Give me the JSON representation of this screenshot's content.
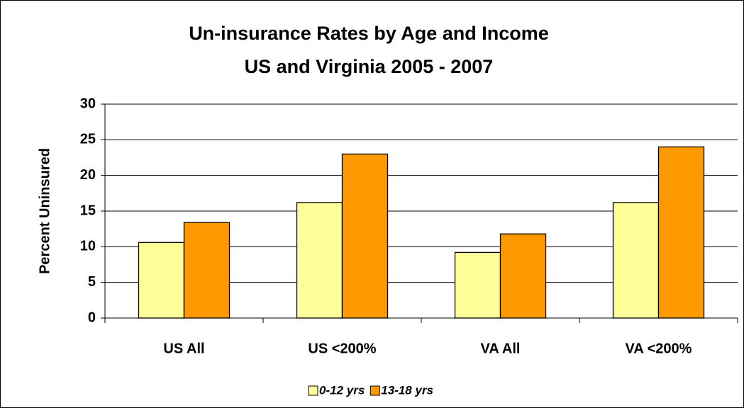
{
  "chart_data": {
    "type": "bar",
    "title": [
      "Un-insurance Rates by Age and Income",
      "US and Virginia 2005 - 2007"
    ],
    "y_label": "Percent Uninsured",
    "categories": [
      "US All",
      "US <200%",
      "VA All",
      "VA <200%"
    ],
    "series": [
      {
        "name": "0-12 yrs",
        "color": "#ffff99",
        "values": [
          10.6,
          16.2,
          9.2,
          16.2
        ]
      },
      {
        "name": "13-18 yrs",
        "color": "#ff9900",
        "values": [
          13.4,
          23,
          11.8,
          24
        ]
      }
    ],
    "ylim": [
      0,
      30
    ],
    "yticks": [
      0,
      5,
      10,
      15,
      20,
      25,
      30
    ],
    "grid": true,
    "legend": "bottom"
  }
}
